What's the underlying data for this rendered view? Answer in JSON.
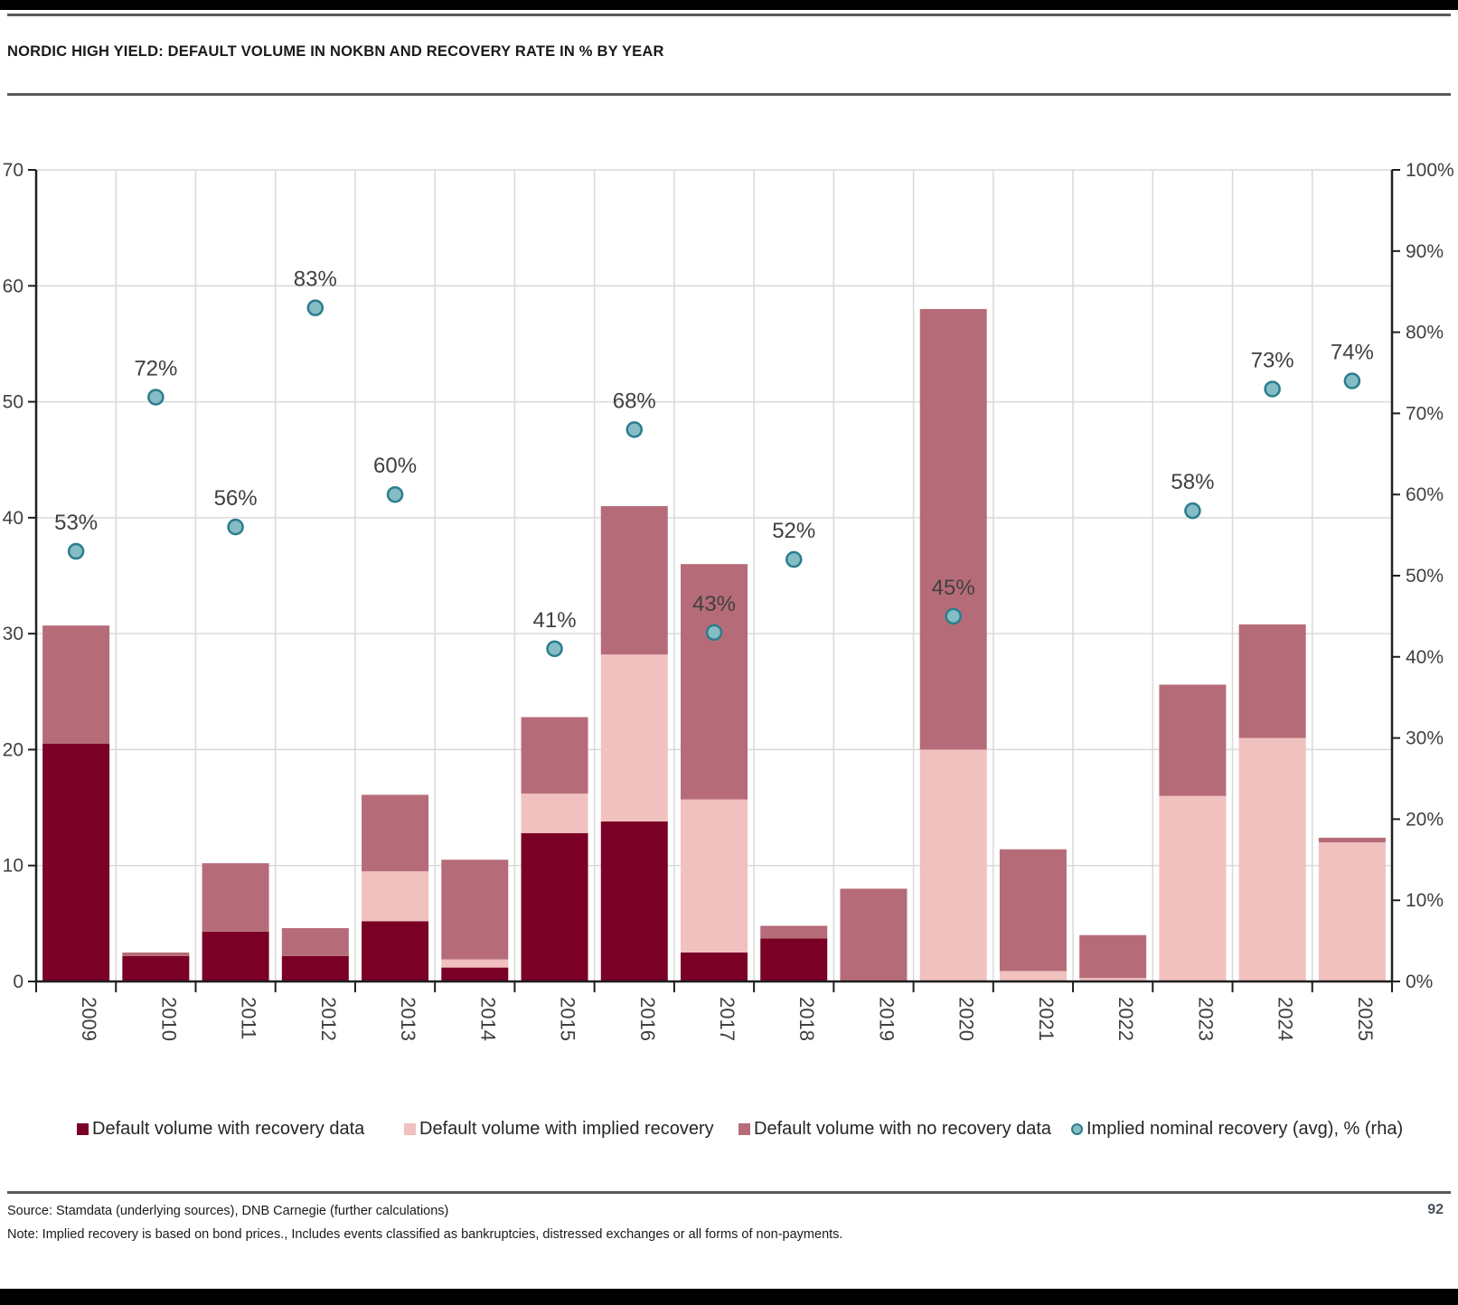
{
  "page": {
    "title": "NORDIC HIGH YIELD: DEFAULT VOLUME IN NOKBN AND RECOVERY RATE IN % BY YEAR",
    "source_line": "Source: Stamdata (underlying sources), DNB Carnegie (further calculations)",
    "note_line": "Note: Implied recovery is based on bond prices., Includes events classified as bankruptcies, distressed exchanges or all forms of non-payments.",
    "page_number": "92"
  },
  "colors": {
    "recovery_data": "#7A0026",
    "implied_recovery": "#F0C1BE",
    "no_recovery_data": "#B66C78",
    "marker_fill": "#86BCC6",
    "marker_stroke": "#2B7E8C",
    "gridline": "#D9D9D9",
    "axis_line": "#1F1F1F",
    "tick_label": "#404040",
    "data_label": "#404040"
  },
  "chart_data": {
    "type": "bar",
    "subtype": "stacked-bars-with-scatter-overlay",
    "title": "NORDIC HIGH YIELD: DEFAULT VOLUME IN NOKBN AND RECOVERY RATE IN % BY YEAR",
    "categories": [
      "2009",
      "2010",
      "2011",
      "2012",
      "2013",
      "2014",
      "2015",
      "2016",
      "2017",
      "2018",
      "2019",
      "2020",
      "2021",
      "2022",
      "2023",
      "2024",
      "2025"
    ],
    "series": [
      {
        "name": "Default volume with recovery data",
        "color_key": "recovery_data",
        "values": [
          20.5,
          2.2,
          4.3,
          2.2,
          5.2,
          1.2,
          12.8,
          13.8,
          2.5,
          3.7,
          0,
          0,
          0,
          0,
          0,
          0,
          0
        ]
      },
      {
        "name": "Default volume with implied recovery",
        "color_key": "implied_recovery",
        "values": [
          0,
          0,
          0,
          0,
          4.3,
          0.7,
          3.4,
          14.4,
          13.2,
          0,
          0,
          20,
          0.9,
          0.3,
          16,
          21,
          12
        ]
      },
      {
        "name": "Default volume with no recovery data",
        "color_key": "no_recovery_data",
        "values": [
          10.2,
          0.3,
          5.9,
          2.4,
          6.6,
          8.6,
          6.6,
          12.8,
          20.3,
          1.1,
          8,
          38,
          10.5,
          3.7,
          9.6,
          9.8,
          0.4
        ]
      }
    ],
    "scatter": {
      "name": "Implied nominal recovery (avg), % (rha)",
      "values": [
        53,
        72,
        56,
        83,
        60,
        null,
        41,
        68,
        43,
        52,
        null,
        45,
        null,
        null,
        58,
        73,
        74
      ],
      "labels": [
        "53%",
        "72%",
        "56%",
        "83%",
        "60%",
        null,
        "41%",
        "68%",
        "43%",
        "52%",
        null,
        "45%",
        null,
        null,
        "58%",
        "73%",
        "74%"
      ]
    },
    "left_axis": {
      "min": 0,
      "max": 70,
      "step": 10,
      "suffix": ""
    },
    "right_axis": {
      "min": 0,
      "max": 100,
      "step": 10,
      "suffix": "%"
    },
    "grid": true,
    "legend_position": "bottom",
    "xlabel": "",
    "ylabel": ""
  }
}
